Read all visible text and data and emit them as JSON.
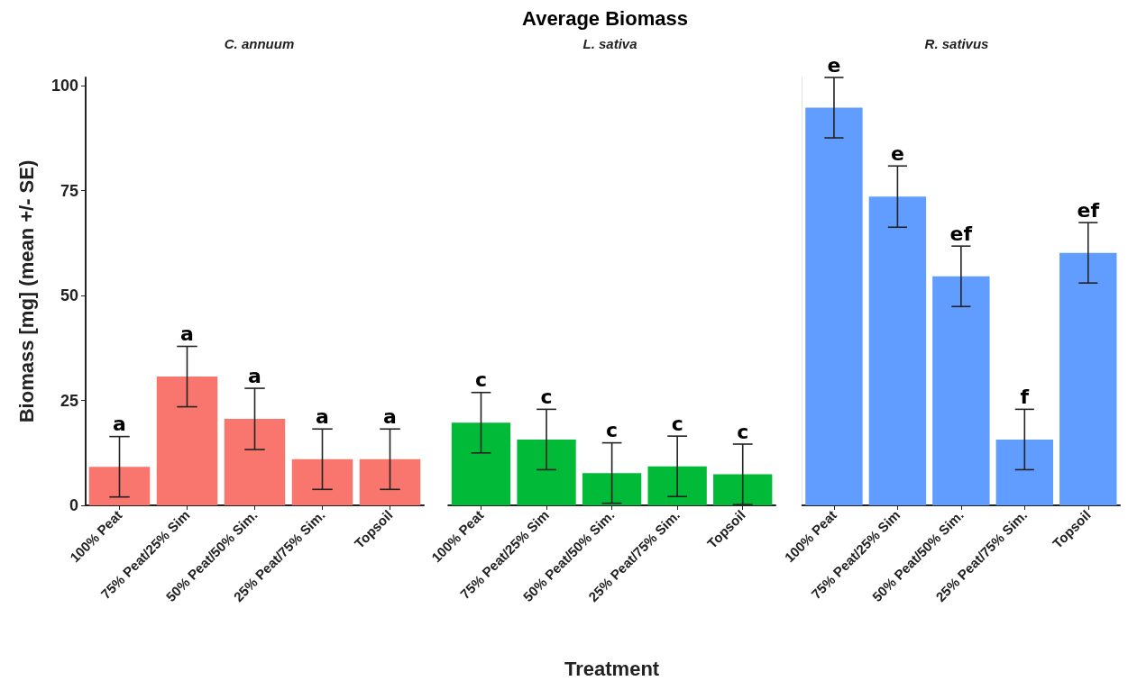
{
  "chart_data": [
    {
      "type": "bar",
      "subtitle": "C. annuum",
      "ylabel": "Biomass [mg] (mean +/- SE)",
      "categories": [
        "100% Peat",
        "75% Peat/25% Sim",
        "50% Peat/50% Sim.",
        "25% Peat/75% Sim.",
        "Topsoil"
      ],
      "values": [
        9.2,
        30.7,
        20.6,
        11.0,
        11.0
      ],
      "errors": [
        7.2,
        7.2,
        7.3,
        7.2,
        7.2
      ],
      "color": "#f8766d",
      "ylim": [
        0,
        102
      ],
      "yticks": [
        0,
        25,
        50,
        75,
        100
      ],
      "grid": false,
      "legend": false,
      "annotations": [
        {
          "text": "a",
          "x": "100% Peat",
          "y": 16.4
        },
        {
          "text": "a",
          "x": "75% Peat/25% Sim",
          "y": 37.9
        },
        {
          "text": "a",
          "x": "50% Peat/50% Sim.",
          "y": 27.9
        },
        {
          "text": "a",
          "x": "25% Peat/75% Sim.",
          "y": 18.2
        },
        {
          "text": "a",
          "x": "Topsoil",
          "y": 18.2
        }
      ]
    },
    {
      "type": "bar",
      "title": "Average Biomass",
      "subtitle": "L. sativa",
      "xlabel": "Treatment",
      "categories": [
        "100% Peat",
        "75% Peat/25% Sim",
        "50% Peat/50% Sim.",
        "25% Peat/75% Sim.",
        "Topsoil"
      ],
      "values": [
        19.7,
        15.7,
        7.7,
        9.3,
        7.4
      ],
      "errors": [
        7.2,
        7.2,
        7.2,
        7.2,
        7.2
      ],
      "color": "#00ba38",
      "ylim": [
        0,
        100
      ],
      "yticks": [
        0,
        25,
        50,
        75,
        100
      ],
      "tick_labels": "x",
      "grid": false,
      "legend": false,
      "annotations": [
        {
          "text": "c",
          "x": "100% Peat",
          "y": 26.9
        },
        {
          "text": "c",
          "x": "75% Peat/25% Sim",
          "y": 22.9
        },
        {
          "text": "c",
          "x": "50% Peat/50% Sim.",
          "y": 14.9
        },
        {
          "text": "c",
          "x": "25% Peat/75% Sim.",
          "y": 16.5
        },
        {
          "text": "c",
          "x": "Topsoil",
          "y": 14.6
        }
      ]
    },
    {
      "type": "bar",
      "subtitle": "R. sativus",
      "categories": [
        "100% Peat",
        "75% Peat/25% Sim",
        "50% Peat/50% Sim.",
        "25% Peat/75% Sim.",
        "Topsoil"
      ],
      "values": [
        94.8,
        73.6,
        54.6,
        15.7,
        60.2
      ],
      "errors": [
        7.2,
        7.3,
        7.2,
        7.2,
        7.2
      ],
      "color": "#619cff",
      "ylim": [
        0,
        102
      ],
      "yticks": [
        0,
        25,
        50,
        75,
        100
      ],
      "tick_labels": "x",
      "grid": false,
      "legend": false,
      "annotations": [
        {
          "text": "e",
          "x": "100% Peat",
          "y": 102.0
        },
        {
          "text": "e",
          "x": "75% Peat/25% Sim",
          "y": 80.9
        },
        {
          "text": "ef",
          "x": "50% Peat/50% Sim.",
          "y": 61.8
        },
        {
          "text": "f",
          "x": "25% Peat/75% Sim.",
          "y": 22.9
        },
        {
          "text": "ef",
          "x": "Topsoil",
          "y": 67.4
        }
      ]
    }
  ]
}
